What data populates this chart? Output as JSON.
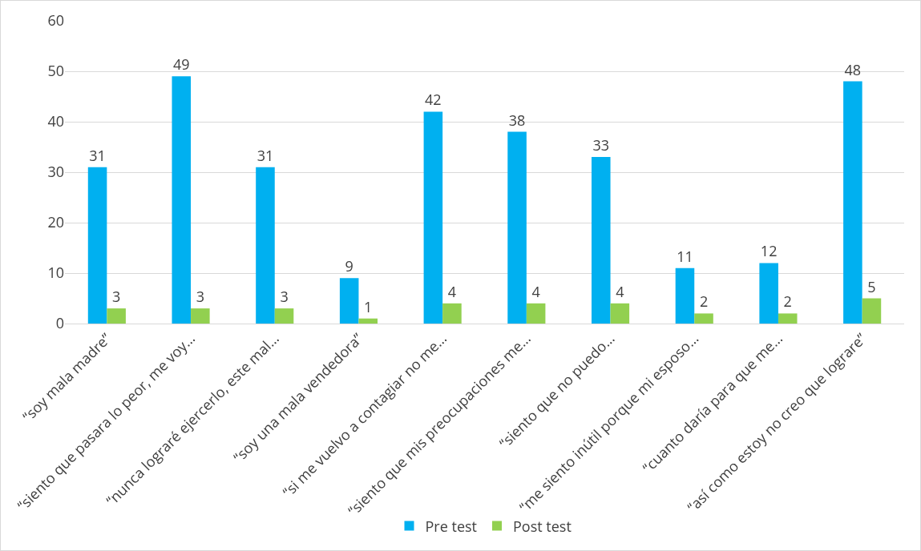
{
  "chart_data": {
    "type": "bar",
    "categories": [
      "“soy mala madre”",
      "“siento que pasara lo peor, me voy…",
      "“nunca lograré ejercerlo, este mal…",
      "“soy una mala vendedora”",
      "“si me vuelvo a contagiar no me…",
      "“siento que mis preocupaciones me…",
      "“siento que no puedo…",
      "“me siento inútil porque mi esposo…",
      "“cuanto daría para que me…",
      "“así como estoy no creo que lograre”"
    ],
    "series": [
      {
        "name": "Pre test",
        "color": "#00b0f0",
        "values": [
          31,
          49,
          31,
          9,
          42,
          38,
          33,
          11,
          12,
          48
        ]
      },
      {
        "name": "Post test",
        "color": "#92d050",
        "values": [
          3,
          3,
          3,
          1,
          4,
          4,
          4,
          2,
          2,
          5
        ]
      }
    ],
    "ylim": [
      0,
      60
    ],
    "yticks": [
      0,
      10,
      20,
      30,
      40,
      50,
      60
    ],
    "grid": "y",
    "legend": "bottom",
    "data_labels": true
  }
}
